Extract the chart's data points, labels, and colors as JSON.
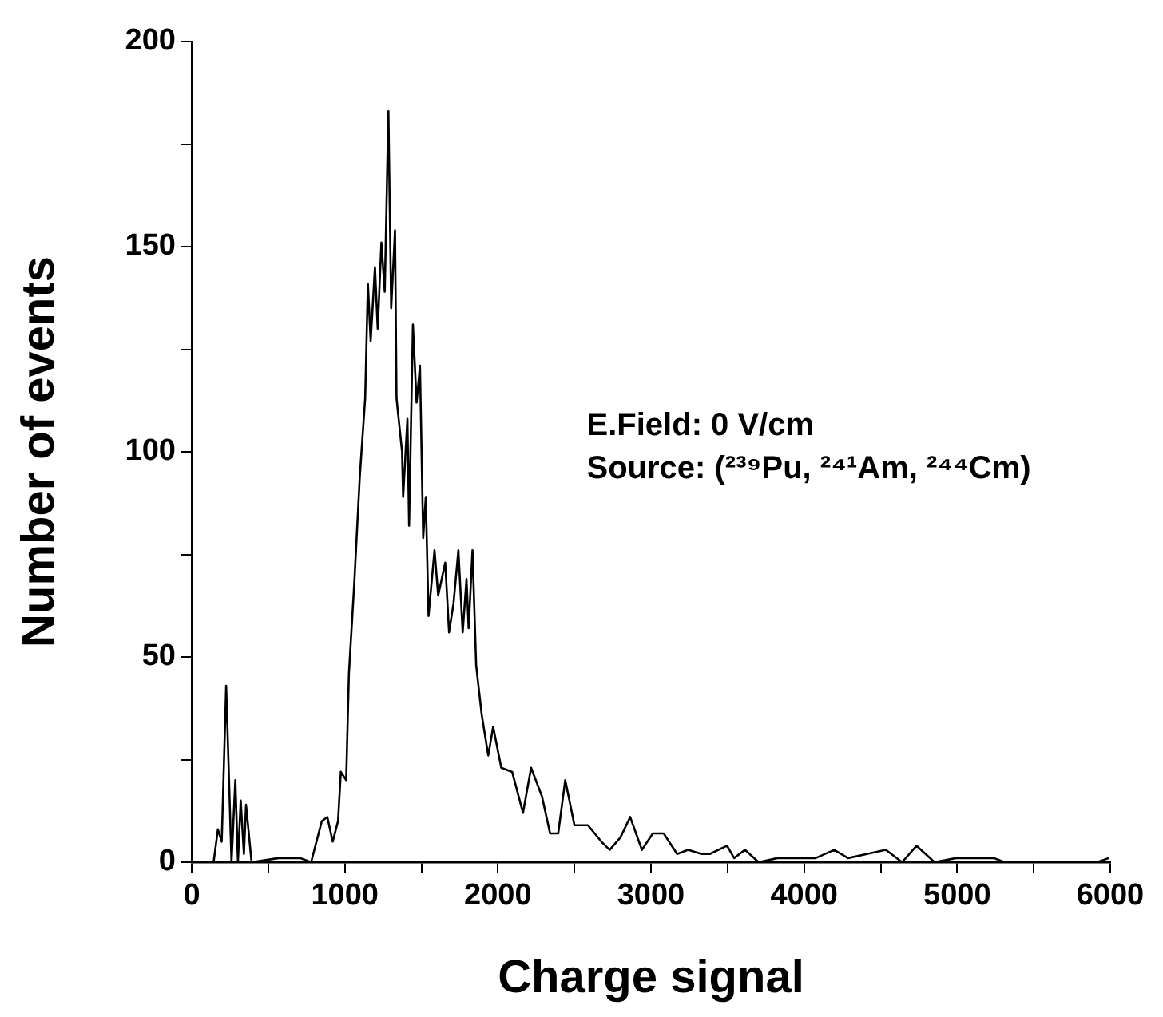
{
  "chart_data": {
    "type": "line",
    "xlabel": "Charge signal",
    "ylabel": "Number of events",
    "annotations": [
      "E.Field: 0 V/cm",
      "Source: (²³⁹Pu, ²⁴¹Am, ²⁴⁴Cm)"
    ],
    "x": [
      0,
      143,
      171,
      196,
      225,
      239,
      260,
      285,
      302,
      320,
      341,
      355,
      391,
      567,
      709,
      780,
      850,
      886,
      921,
      956,
      974,
      1009,
      1027,
      1062,
      1098,
      1133,
      1151,
      1169,
      1197,
      1215,
      1239,
      1261,
      1285,
      1303,
      1328,
      1338,
      1374,
      1381,
      1409,
      1420,
      1445,
      1469,
      1491,
      1512,
      1529,
      1547,
      1586,
      1610,
      1656,
      1681,
      1710,
      1742,
      1770,
      1795,
      1809,
      1834,
      1858,
      1894,
      1937,
      1969,
      2022,
      2093,
      2164,
      2217,
      2288,
      2341,
      2394,
      2440,
      2500,
      2588,
      2676,
      2730,
      2800,
      2864,
      2941,
      3012,
      3083,
      3171,
      3242,
      3331,
      3384,
      3497,
      3543,
      3614,
      3703,
      3827,
      3968,
      4075,
      4197,
      4287,
      4410,
      4534,
      4640,
      4735,
      4852,
      4993,
      5099,
      5240,
      5311,
      5488,
      5630,
      5771,
      5913,
      5990
    ],
    "series": [
      {
        "color": "#000000",
        "values": [
          0,
          0,
          8,
          5,
          43,
          26,
          0,
          20,
          0,
          15,
          2,
          14,
          0,
          1,
          1,
          0,
          10,
          11,
          5,
          10,
          22,
          20,
          46,
          68,
          94,
          113,
          141,
          127,
          145,
          130,
          151,
          139,
          183,
          135,
          154,
          113,
          100,
          89,
          108,
          82,
          131,
          112,
          121,
          79,
          89,
          60,
          76,
          65,
          73,
          56,
          63,
          76,
          56,
          69,
          57,
          76,
          48,
          36,
          26,
          33,
          23,
          22,
          12,
          23,
          16,
          7,
          7,
          20,
          9,
          9,
          5,
          3,
          6,
          11,
          3,
          7,
          7,
          2,
          3,
          2,
          2,
          4,
          1,
          3,
          0,
          1,
          1,
          1,
          3,
          1,
          2,
          3,
          0,
          4,
          0,
          1,
          1,
          1,
          0,
          0,
          0,
          0,
          0,
          1
        ]
      }
    ],
    "xlim": [
      0,
      6000
    ],
    "ylim": [
      0,
      200
    ],
    "xticks": [
      0,
      {
        "value": 500,
        "label": null
      },
      1000,
      {
        "value": 1500,
        "label": null
      },
      2000,
      {
        "value": 2500,
        "label": null
      },
      3000,
      {
        "value": 3500,
        "label": null
      },
      4000,
      {
        "value": 4500,
        "label": null
      },
      5000,
      {
        "value": 5500,
        "label": null
      },
      6000
    ],
    "yticks": [
      0,
      {
        "value": 25,
        "label": null
      },
      50,
      {
        "value": 75,
        "label": null
      },
      100,
      {
        "value": 125,
        "label": null
      },
      150,
      {
        "value": 175,
        "label": null
      },
      200
    ],
    "grid": false,
    "legend": false,
    "marker": "none",
    "line_style": "solid"
  }
}
